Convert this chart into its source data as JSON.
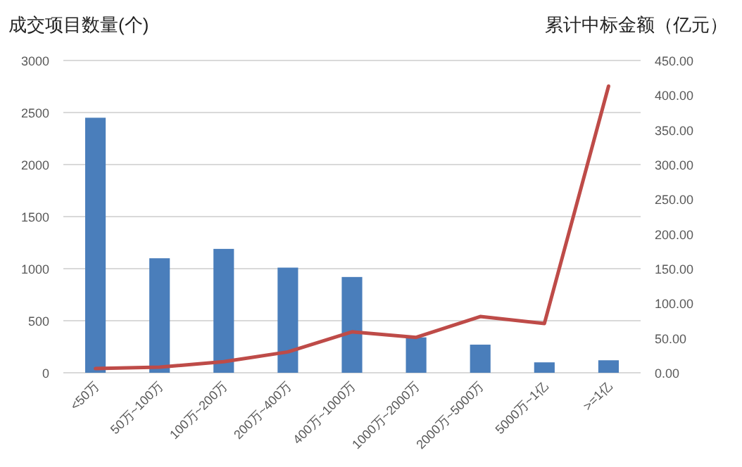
{
  "chart_data": {
    "type": "bar",
    "ylabel": "成交项目数量(个)",
    "y2label": "累计中标金额（亿元）",
    "categories": [
      "<50万",
      "50万~100万",
      "100万~200万",
      "200万~400万",
      "400万~1000万",
      "1000万~2000万",
      "2000万~5000万",
      "5000万~1亿",
      ">=1亿"
    ],
    "series": [
      {
        "color": "#4a7ebb",
        "values": [
          2450,
          1100,
          1190,
          1010,
          920,
          340,
          270,
          100,
          120
        ]
      },
      {
        "type": "line",
        "axis": "y2",
        "color": "#be4b48",
        "values": [
          6,
          8,
          16,
          30,
          59,
          51,
          81,
          71,
          413
        ]
      }
    ],
    "ylim": [
      0,
      3000
    ],
    "yticks": [
      0,
      500,
      1000,
      1500,
      2000,
      2500,
      3000
    ],
    "y2lim": [
      0,
      450
    ],
    "y2ticks": [
      {
        "value": 0,
        "label": "0.00"
      },
      {
        "value": 50,
        "label": "50.00"
      },
      {
        "value": 100,
        "label": "100.00"
      },
      {
        "value": 150,
        "label": "150.00"
      },
      {
        "value": 200,
        "label": "200.00"
      },
      {
        "value": 250,
        "label": "250.00"
      },
      {
        "value": 300,
        "label": "300.00"
      },
      {
        "value": 350,
        "label": "350.00"
      },
      {
        "value": 400,
        "label": "400.00"
      },
      {
        "value": 450,
        "label": "450.00"
      }
    ],
    "grid": "y",
    "marker": "none",
    "line_style": "solid"
  }
}
